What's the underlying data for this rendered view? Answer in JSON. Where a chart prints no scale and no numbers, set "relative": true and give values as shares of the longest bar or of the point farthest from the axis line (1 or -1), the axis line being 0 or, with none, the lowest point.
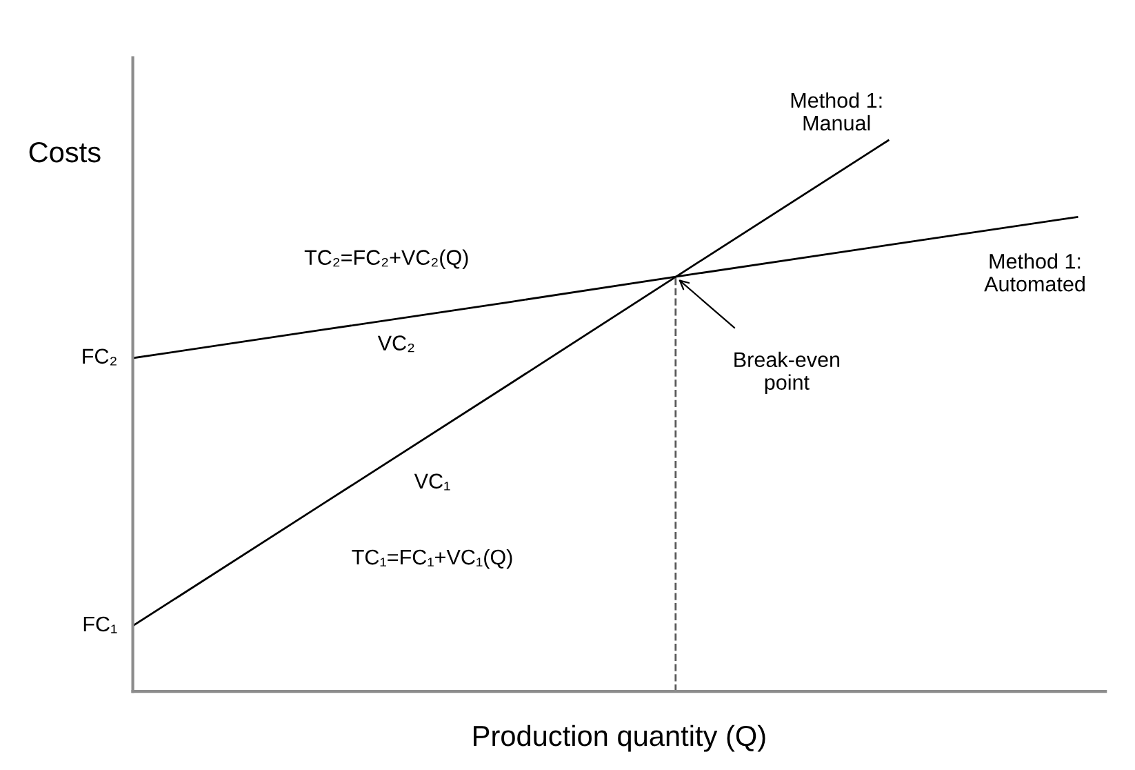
{
  "chart_data": {
    "type": "line",
    "relative": true,
    "xlabel": "Production quantity (Q)",
    "ylabel": "Costs",
    "categories": [
      null,
      null,
      null,
      null,
      null,
      null
    ],
    "series": [
      {
        "values": [
          0.119,
          0.339,
          0.559,
          0.78,
          1.0,
          null
        ],
        "color": "#000000"
      },
      {
        "values": [
          0.605,
          0.656,
          0.707,
          0.759,
          0.81,
          0.861
        ],
        "color": "#000000"
      }
    ],
    "annotations": [
      "Method 1:\nManual",
      "Method 1:\nAutomated",
      "TC₂=FC₂+VC₂(Q)",
      "VC₂",
      "VC₁",
      "TC₁=FC₁+VC₁(Q)",
      "FC₂",
      "FC₁",
      "Break-even\npoint"
    ]
  }
}
